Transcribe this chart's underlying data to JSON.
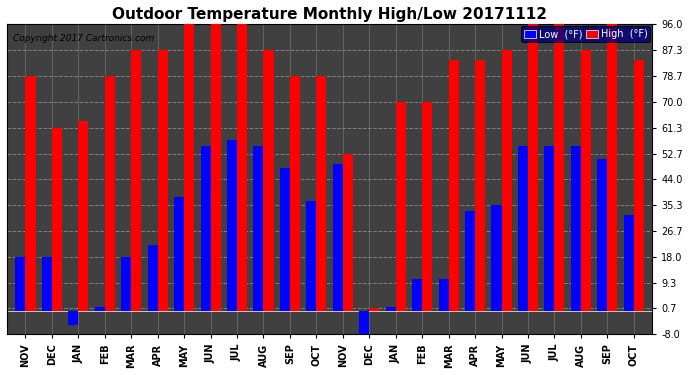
{
  "title": "Outdoor Temperature Monthly High/Low 20171112",
  "copyright": "Copyright 2017 Cartronics.com",
  "legend_low": "Low  (°F)",
  "legend_high": "High  (°F)",
  "months": [
    "NOV",
    "DEC",
    "JAN",
    "FEB",
    "MAR",
    "APR",
    "MAY",
    "JUN",
    "JUL",
    "AUG",
    "SEP",
    "OCT",
    "NOV",
    "DEC",
    "JAN",
    "FEB",
    "MAR",
    "APR",
    "MAY",
    "JUN",
    "JUL",
    "AUG",
    "SEP",
    "OCT"
  ],
  "high_values": [
    78.7,
    61.3,
    63.5,
    78.7,
    87.3,
    87.3,
    96.0,
    96.0,
    96.0,
    87.3,
    78.7,
    78.7,
    52.7,
    0.7,
    70.0,
    70.0,
    84.0,
    84.0,
    87.3,
    96.0,
    96.0,
    87.3,
    96.0,
    84.0
  ],
  "low_values": [
    18.0,
    18.0,
    -4.7,
    1.3,
    18.0,
    22.0,
    38.0,
    55.3,
    57.3,
    55.3,
    48.0,
    36.7,
    49.3,
    -11.3,
    1.3,
    10.7,
    10.7,
    33.3,
    35.3,
    55.3,
    55.3,
    55.3,
    50.7,
    32.0
  ],
  "ylim": [
    -8.0,
    96.0
  ],
  "yticks": [
    -8.0,
    0.7,
    9.3,
    18.0,
    26.7,
    35.3,
    44.0,
    52.7,
    61.3,
    70.0,
    78.7,
    87.3,
    96.0
  ],
  "high_color": "#ff0000",
  "low_color": "#0000ff",
  "bg_color": "#ffffff",
  "plot_bg_color": "#404040",
  "grid_color": "#808080",
  "title_fontsize": 11,
  "tick_fontsize": 7,
  "label_fontsize": 7,
  "bar_width": 0.38
}
